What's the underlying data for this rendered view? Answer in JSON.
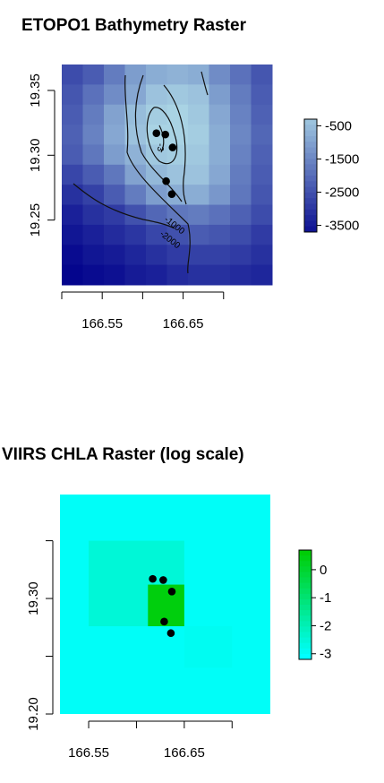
{
  "chart_data": [
    {
      "type": "heatmap",
      "title": "ETOPO1 Bathymetry Raster",
      "xlabel": "",
      "ylabel": "",
      "xlim": [
        166.5,
        166.76
      ],
      "ylim": [
        19.2,
        19.37
      ],
      "x_ticks": [
        166.5,
        166.55,
        166.6,
        166.65,
        166.7
      ],
      "x_tick_labels": [
        "166.55",
        "166.65"
      ],
      "y_ticks": [
        19.25,
        19.3,
        19.35
      ],
      "y_tick_labels": [
        "19.25",
        "19.30",
        "19.35"
      ],
      "color_range": [
        -4000,
        0
      ],
      "grid": [
        [
          -2600,
          -2300,
          -1700,
          -1100,
          -800,
          -700,
          -800,
          -1400,
          -1900,
          -2400
        ],
        [
          -2400,
          -1900,
          -1400,
          -900,
          -400,
          -300,
          -400,
          -1100,
          -1700,
          -2300
        ],
        [
          -2300,
          -1700,
          -1000,
          -500,
          -200,
          -100,
          -300,
          -900,
          -1600,
          -2200
        ],
        [
          -2200,
          -1600,
          -900,
          -400,
          -100,
          -100,
          -200,
          -800,
          -1500,
          -2100
        ],
        [
          -2300,
          -1800,
          -1100,
          -700,
          -300,
          -200,
          -300,
          -800,
          -1600,
          -2200
        ],
        [
          -2700,
          -2300,
          -1800,
          -1000,
          -600,
          -400,
          -400,
          -900,
          -1700,
          -2300
        ],
        [
          -3100,
          -2800,
          -2300,
          -1700,
          -1100,
          -800,
          -800,
          -1200,
          -1800,
          -2400
        ],
        [
          -3400,
          -3100,
          -2900,
          -2500,
          -2100,
          -1800,
          -1700,
          -1900,
          -2200,
          -2600
        ],
        [
          -3600,
          -3400,
          -3200,
          -3000,
          -2700,
          -2500,
          -2300,
          -2400,
          -2600,
          -2900
        ],
        [
          -3800,
          -3600,
          -3500,
          -3300,
          -3100,
          -2900,
          -2800,
          -2800,
          -2900,
          -3100
        ],
        [
          -3900,
          -3800,
          -3700,
          -3500,
          -3400,
          -3200,
          -3100,
          -3100,
          -3200,
          -3300
        ]
      ],
      "legend_labels": [
        -500,
        -1500,
        -2500,
        -3500
      ],
      "legend_label_text": [
        "-500",
        "-1500",
        "-2500",
        "-3500"
      ],
      "contour_labels": [
        "-1000",
        "-2000",
        "-3"
      ],
      "points": [
        {
          "x": 166.617,
          "y": 19.317
        },
        {
          "x": 166.628,
          "y": 19.316
        },
        {
          "x": 166.637,
          "y": 19.306
        },
        {
          "x": 166.629,
          "y": 19.28
        },
        {
          "x": 166.636,
          "y": 19.27
        }
      ],
      "colors": {
        "low": "#00008b",
        "high": "#add8e6"
      }
    },
    {
      "type": "heatmap",
      "title": "VIIRS CHLA Raster (log scale)",
      "xlabel": "",
      "ylabel": "",
      "xlim": [
        166.52,
        166.74
      ],
      "ylim": [
        19.2,
        19.39
      ],
      "x_ticks": [
        166.55,
        166.6,
        166.65,
        166.7
      ],
      "x_tick_labels": [
        "166.55",
        "166.65"
      ],
      "y_ticks": [
        19.2,
        19.25,
        19.3,
        19.35
      ],
      "y_tick_labels": [
        "19.20",
        "19.30"
      ],
      "color_range": [
        -3.1,
        0.7
      ],
      "cells": [
        {
          "x0": 166.55,
          "x1": 166.65,
          "y0": 19.276,
          "y1": 19.35,
          "v": -2.5
        },
        {
          "x0": 166.612,
          "x1": 166.65,
          "y0": 19.276,
          "y1": 19.312,
          "v": 0.5
        },
        {
          "x0": 166.65,
          "x1": 166.7,
          "y0": 19.24,
          "y1": 19.276,
          "v": -2.9
        }
      ],
      "background_value": -3.0,
      "legend_labels": [
        0,
        -1,
        -2,
        -3
      ],
      "legend_label_text": [
        "0",
        "-1",
        "-2",
        "-3"
      ],
      "points": [
        {
          "x": 166.617,
          "y": 19.317
        },
        {
          "x": 166.628,
          "y": 19.316
        },
        {
          "x": 166.637,
          "y": 19.306
        },
        {
          "x": 166.629,
          "y": 19.28
        },
        {
          "x": 166.636,
          "y": 19.27
        }
      ],
      "colors": {
        "low": "#00ffff",
        "high": "#00cc00"
      }
    }
  ]
}
